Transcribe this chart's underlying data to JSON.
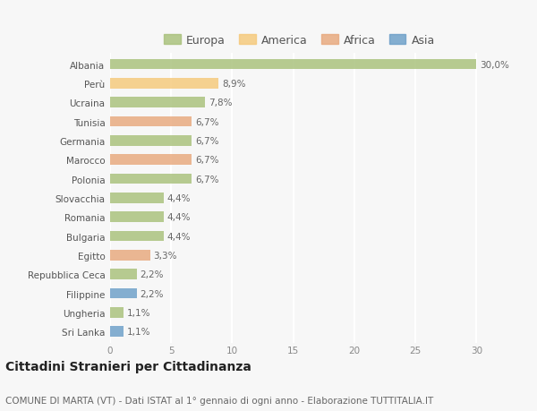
{
  "categories": [
    "Albania",
    "Perù",
    "Ucraina",
    "Tunisia",
    "Germania",
    "Marocco",
    "Polonia",
    "Slovacchia",
    "Romania",
    "Bulgaria",
    "Egitto",
    "Repubblica Ceca",
    "Filippine",
    "Ungheria",
    "Sri Lanka"
  ],
  "values": [
    30.0,
    8.9,
    7.8,
    6.7,
    6.7,
    6.7,
    6.7,
    4.4,
    4.4,
    4.4,
    3.3,
    2.2,
    2.2,
    1.1,
    1.1
  ],
  "labels": [
    "30,0%",
    "8,9%",
    "7,8%",
    "6,7%",
    "6,7%",
    "6,7%",
    "6,7%",
    "4,4%",
    "4,4%",
    "4,4%",
    "3,3%",
    "2,2%",
    "2,2%",
    "1,1%",
    "1,1%"
  ],
  "regions": [
    "Europa",
    "America",
    "Europa",
    "Africa",
    "Europa",
    "Africa",
    "Europa",
    "Europa",
    "Europa",
    "Europa",
    "Africa",
    "Europa",
    "Asia",
    "Europa",
    "Asia"
  ],
  "colors": {
    "Europa": "#a8c07a",
    "America": "#f5c97a",
    "Africa": "#e8a87c",
    "Asia": "#6b9ec8"
  },
  "xlim": [
    0,
    31
  ],
  "xticks": [
    0,
    5,
    10,
    15,
    20,
    25,
    30
  ],
  "title": "Cittadini Stranieri per Cittadinanza",
  "subtitle": "COMUNE DI MARTA (VT) - Dati ISTAT al 1° gennaio di ogni anno - Elaborazione TUTTITALIA.IT",
  "background_color": "#f7f7f7",
  "grid_color": "#ffffff",
  "bar_height": 0.55,
  "title_fontsize": 10,
  "subtitle_fontsize": 7.5,
  "label_fontsize": 7.5,
  "tick_fontsize": 7.5,
  "legend_fontsize": 9
}
